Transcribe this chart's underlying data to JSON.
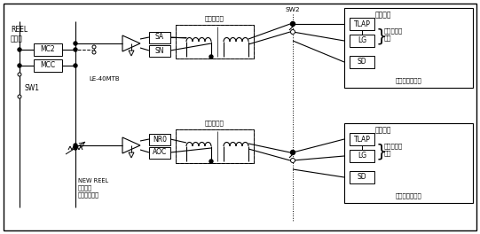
{
  "bg_color": "#ffffff",
  "line_color": "#000000",
  "gray_color": "#aaaaaa",
  "figsize": [
    5.41,
    2.64
  ],
  "dpi": 100,
  "labels": {
    "reel": "REEL\n체인지",
    "sw1": "SW1",
    "mc2": "MC2",
    "mcc": "MCC",
    "le40mtb": "LE-40MTB",
    "new_reel": "NEW REEL\n프리셋값\n토르크제한치",
    "torque_top": "토르크지형",
    "torque_bot": "토르크제한",
    "sw2": "SW2",
    "sa": "SA",
    "sn": "SN",
    "nro": "NR0",
    "aoc": "AOC",
    "servo_top": "서보앰프",
    "servo_bot": "서보앰프",
    "tlap_top": "TLAP",
    "lg_top": "LG",
    "sd_top": "SD",
    "tlap_bot": "TLAP",
    "lg_bot": "LG",
    "sd_bot": "SD",
    "torque_set_top": "토르크설정\n단자",
    "torque_set_bot": "토르크설정\n단자",
    "torque_ctrl_top": "토르크제어모드",
    "torque_ctrl_bot": "토르크제어모드"
  }
}
